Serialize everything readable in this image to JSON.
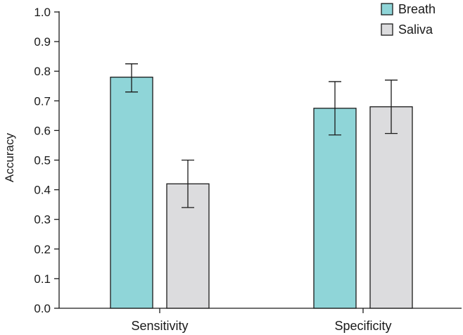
{
  "chart_data": {
    "type": "bar",
    "title": "",
    "xlabel": "",
    "ylabel": "Accuracy",
    "ylim": [
      0,
      1.0
    ],
    "yticks": [
      "0.0",
      "0.1",
      "0.2",
      "0.3",
      "0.4",
      "0.5",
      "0.6",
      "0.7",
      "0.8",
      "0.9",
      "1.0"
    ],
    "categories": [
      "Sensitivity",
      "Specificity"
    ],
    "series": [
      {
        "name": "Breath",
        "color": "#8fd5d8",
        "values": [
          0.78,
          0.675
        ],
        "err_low": [
          0.73,
          0.585
        ],
        "err_high": [
          0.825,
          0.765
        ]
      },
      {
        "name": "Saliva",
        "color": "#dcdcde",
        "values": [
          0.42,
          0.68
        ],
        "err_low": [
          0.34,
          0.59
        ],
        "err_high": [
          0.5,
          0.77
        ]
      }
    ],
    "legend": "top-right",
    "grid": false
  }
}
